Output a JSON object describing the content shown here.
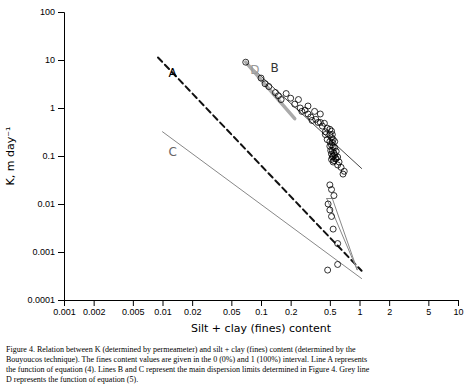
{
  "chart_data": {
    "type": "line",
    "log": true,
    "grid": false,
    "xlabel": "Silt + clay (fines) content",
    "ylabel": "K, m day⁻¹",
    "caption": "Figure 4. Relation between K (determined by permeameter) and silt + clay (fines) content (determined by the\nBouyoucos technique). The fines content values are given in the 0 (0%) and 1 (100%) interval. Line A represents\nthe function of equation (4). Lines B and C represent the main dispersion limits determined in Figure 4. Grey line\nD represents the function of equation (5).",
    "xlim": [
      0.001,
      10
    ],
    "ylim": [
      0.0001,
      100
    ],
    "xticks": [
      0.001,
      0.002,
      0.005,
      0.01,
      0.02,
      0.05,
      0.1,
      0.2,
      0.5,
      1,
      2,
      5,
      10
    ],
    "yticks": [
      0.0001,
      0.001,
      0.01,
      0.1,
      1,
      10,
      100
    ],
    "series": [
      {
        "type": "line",
        "color": "#111111",
        "line_style": "dashed",
        "x": [
          0.009,
          1.05
        ],
        "values": [
          11.288107,
          0.000406149
        ]
      },
      {
        "type": "line",
        "color": "#444444",
        "line_style": "solid",
        "x": [
          0.07,
          1.05
        ],
        "values": [
          9.0,
          0.055
        ]
      },
      {
        "type": "line",
        "color": "#888888",
        "line_style": "solid",
        "x": [
          0.01,
          1.05
        ],
        "values": [
          0.32,
          0.00028
        ]
      },
      {
        "type": "line",
        "color": "#aaaaaa",
        "line_style": "solid",
        "x": [
          0.07,
          0.22
        ],
        "values": [
          9.0,
          0.6
        ]
      },
      {
        "type": "line",
        "color": "#888888",
        "line_style": "solid",
        "x": [
          0.465,
          0.53,
          0.95,
          0.465
        ],
        "values": [
          0.013,
          0.013,
          0.00042,
          0.013
        ]
      },
      {
        "type": "scatter",
        "color": "#000000",
        "marker": "circle",
        "x": [
          0.07,
          0.1,
          0.11,
          0.12,
          0.14,
          0.15,
          0.16,
          0.18,
          0.2,
          0.22,
          0.24,
          0.25,
          0.26,
          0.28,
          0.3,
          0.3,
          0.32,
          0.33,
          0.35,
          0.36,
          0.38,
          0.4,
          0.4,
          0.42,
          0.44,
          0.45,
          0.45,
          0.47,
          0.47,
          0.5,
          0.5,
          0.5,
          0.5,
          0.51,
          0.52,
          0.52,
          0.52,
          0.52,
          0.52,
          0.53,
          0.53,
          0.53,
          0.53,
          0.54,
          0.54,
          0.54,
          0.54,
          0.55,
          0.55,
          0.56,
          0.56,
          0.56,
          0.57,
          0.58,
          0.58,
          0.6,
          0.6,
          0.62,
          0.65,
          0.68,
          0.7,
          0.48,
          0.5,
          0.52,
          0.54,
          0.55,
          0.52,
          0.5,
          0.6,
          0.6,
          0.475
        ],
        "values": [
          9.0,
          4.2,
          3.2,
          2.8,
          2.1,
          1.8,
          1.5,
          2.0,
          1.6,
          1.2,
          1.5,
          1.0,
          0.85,
          0.9,
          1.1,
          0.75,
          0.65,
          0.55,
          0.85,
          0.58,
          0.5,
          0.75,
          0.5,
          0.42,
          0.48,
          0.32,
          0.28,
          0.38,
          0.22,
          0.36,
          0.28,
          0.2,
          0.16,
          0.13,
          0.33,
          0.24,
          0.17,
          0.11,
          0.085,
          0.28,
          0.19,
          0.13,
          0.095,
          0.22,
          0.155,
          0.1,
          0.075,
          0.115,
          0.08,
          0.2,
          0.15,
          0.105,
          0.088,
          0.125,
          0.088,
          0.095,
          0.065,
          0.075,
          0.058,
          0.042,
          0.048,
          0.01,
          0.0075,
          0.0055,
          0.003,
          0.015,
          0.02,
          0.025,
          0.0015,
          0.00055,
          0.00042
        ]
      }
    ],
    "annotations": [
      {
        "text": "A",
        "x": 0.0115,
        "y": 4.5,
        "color": "#000000"
      },
      {
        "text": "B",
        "x": 0.125,
        "y": 5.5,
        "color": "#333333"
      },
      {
        "text": "C",
        "x": 0.0115,
        "y": 0.1,
        "color": "#666666"
      },
      {
        "text": "D",
        "x": 0.078,
        "y": 5.2,
        "color": "#999999"
      }
    ]
  }
}
